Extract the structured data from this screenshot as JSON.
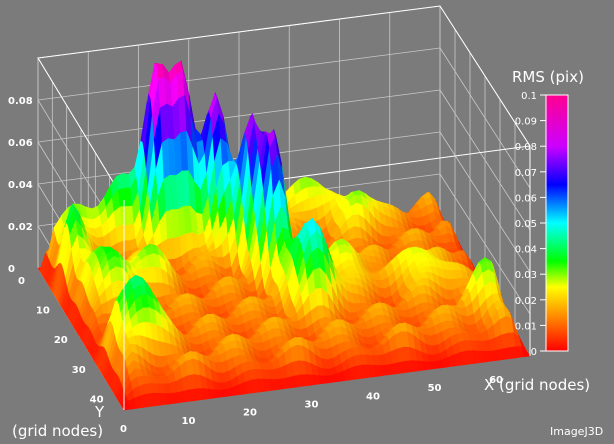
{
  "chart_data": {
    "type": "surface3d",
    "colorbar_title": "RMS (pix)",
    "colorbar_ticks": [
      "0.1",
      "0.09",
      "0.08",
      "0.07",
      "0.06",
      "0.05",
      "0.04",
      "0.03",
      "0.02",
      "0.01",
      "0"
    ],
    "z_ticks": [
      "0.08",
      "0.06",
      "0.04",
      "0.02",
      "0"
    ],
    "x_ticks": [
      "0",
      "10",
      "20",
      "30",
      "40",
      "50",
      "60"
    ],
    "y_ticks": [
      "0",
      "10",
      "20",
      "30",
      "40"
    ],
    "xlabel": "X (grid nodes)",
    "ylabel_line1": "Y",
    "ylabel_line2": "(grid nodes)",
    "xlim": [
      0,
      66
    ],
    "ylim": [
      0,
      48
    ],
    "zlim": [
      0,
      0.1
    ],
    "peaks": [
      {
        "x": 18,
        "y": 5,
        "z": 0.082
      },
      {
        "x": 22,
        "y": 5,
        "z": 0.076
      },
      {
        "x": 27,
        "y": 8,
        "z": 0.07
      },
      {
        "x": 31,
        "y": 14,
        "z": 0.063
      },
      {
        "x": 33,
        "y": 20,
        "z": 0.058
      },
      {
        "x": 36,
        "y": 30,
        "z": 0.041
      },
      {
        "x": 6,
        "y": 35,
        "z": 0.036
      },
      {
        "x": 13,
        "y": 1,
        "z": 0.034
      },
      {
        "x": 6,
        "y": 1,
        "z": 0.03
      },
      {
        "x": 26,
        "y": 1,
        "z": 0.03
      },
      {
        "x": 42,
        "y": 1,
        "z": 0.03
      },
      {
        "x": 2,
        "y": 10,
        "z": 0.028
      },
      {
        "x": 5,
        "y": 20,
        "z": 0.024
      },
      {
        "x": 12,
        "y": 18,
        "z": 0.02
      },
      {
        "x": 50,
        "y": 8,
        "z": 0.02
      },
      {
        "x": 55,
        "y": 28,
        "z": 0.019
      },
      {
        "x": 62,
        "y": 38,
        "z": 0.016
      },
      {
        "x": 44,
        "y": 24,
        "z": 0.016
      }
    ],
    "colors": [
      "#ff0000",
      "#ff8000",
      "#ffff00",
      "#00ff00",
      "#00ffff",
      "#0000ff",
      "#ff00ff"
    ]
  },
  "watermark": "ImageJ3D"
}
